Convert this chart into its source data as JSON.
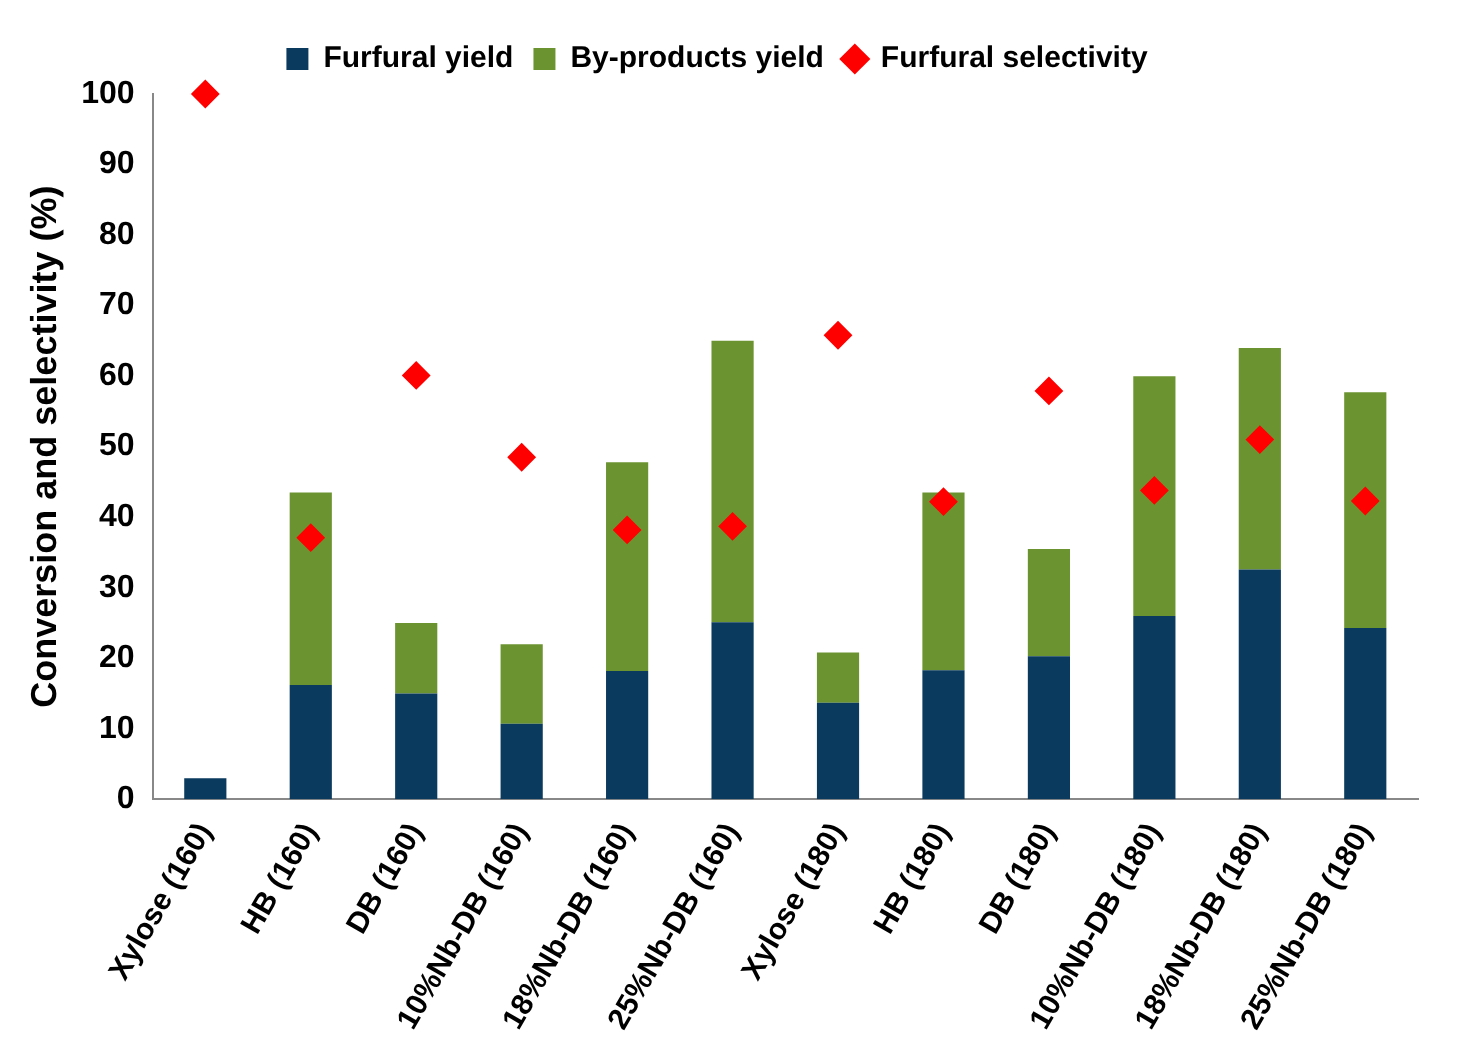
{
  "chart_data": {
    "type": "bar",
    "ylabel": "Conversion and selectivity (%)",
    "categories": [
      "Xylose (160)",
      "HB (160)",
      "DB (160)",
      "10%Nb-DB (160)",
      "18%Nb-DB (160)",
      "25%Nb-DB (160)",
      "Xylose (180)",
      "HB (180)",
      "DB (180)",
      "10%Nb-DB (180)",
      "18%Nb-DB (180)",
      "25%Nb-DB (180)"
    ],
    "stacked": true,
    "ylim": [
      0,
      100
    ],
    "yticks": [
      0,
      10,
      20,
      30,
      40,
      50,
      60,
      70,
      80,
      90,
      100
    ],
    "grid": false,
    "legend": "top",
    "series": [
      {
        "name": "Furfural yield",
        "color": "#0a3a5e",
        "values": [
          3,
          16.2,
          15,
          10.7,
          18.2,
          25.1,
          13.7,
          18.3,
          20.3,
          26,
          32.6,
          24.3
        ]
      },
      {
        "name": "By-products yield",
        "color": "#6b9430",
        "values": [
          0,
          27.3,
          10,
          11.3,
          29.6,
          39.9,
          7.1,
          25.2,
          15.2,
          34,
          31.4,
          33.4
        ]
      },
      {
        "name": "Furfural selectivity",
        "type": "scatter",
        "marker": "diamond",
        "color": "#ff0000",
        "x": [
          "Xylose (160)",
          "HB (160)",
          "DB (160)",
          "10%Nb-DB (160)",
          "18%Nb-DB (160)",
          "25%Nb-DB (160)",
          "Xylose (180)",
          "HB (180)",
          "DB (180)",
          "10%Nb-DB (180)",
          "18%Nb-DB (180)",
          "25%Nb-DB (180)"
        ],
        "values": [
          100,
          37.1,
          60.1,
          48.5,
          38.2,
          38.7,
          65.8,
          42.2,
          57.9,
          43.8,
          51,
          42.3
        ]
      }
    ]
  }
}
